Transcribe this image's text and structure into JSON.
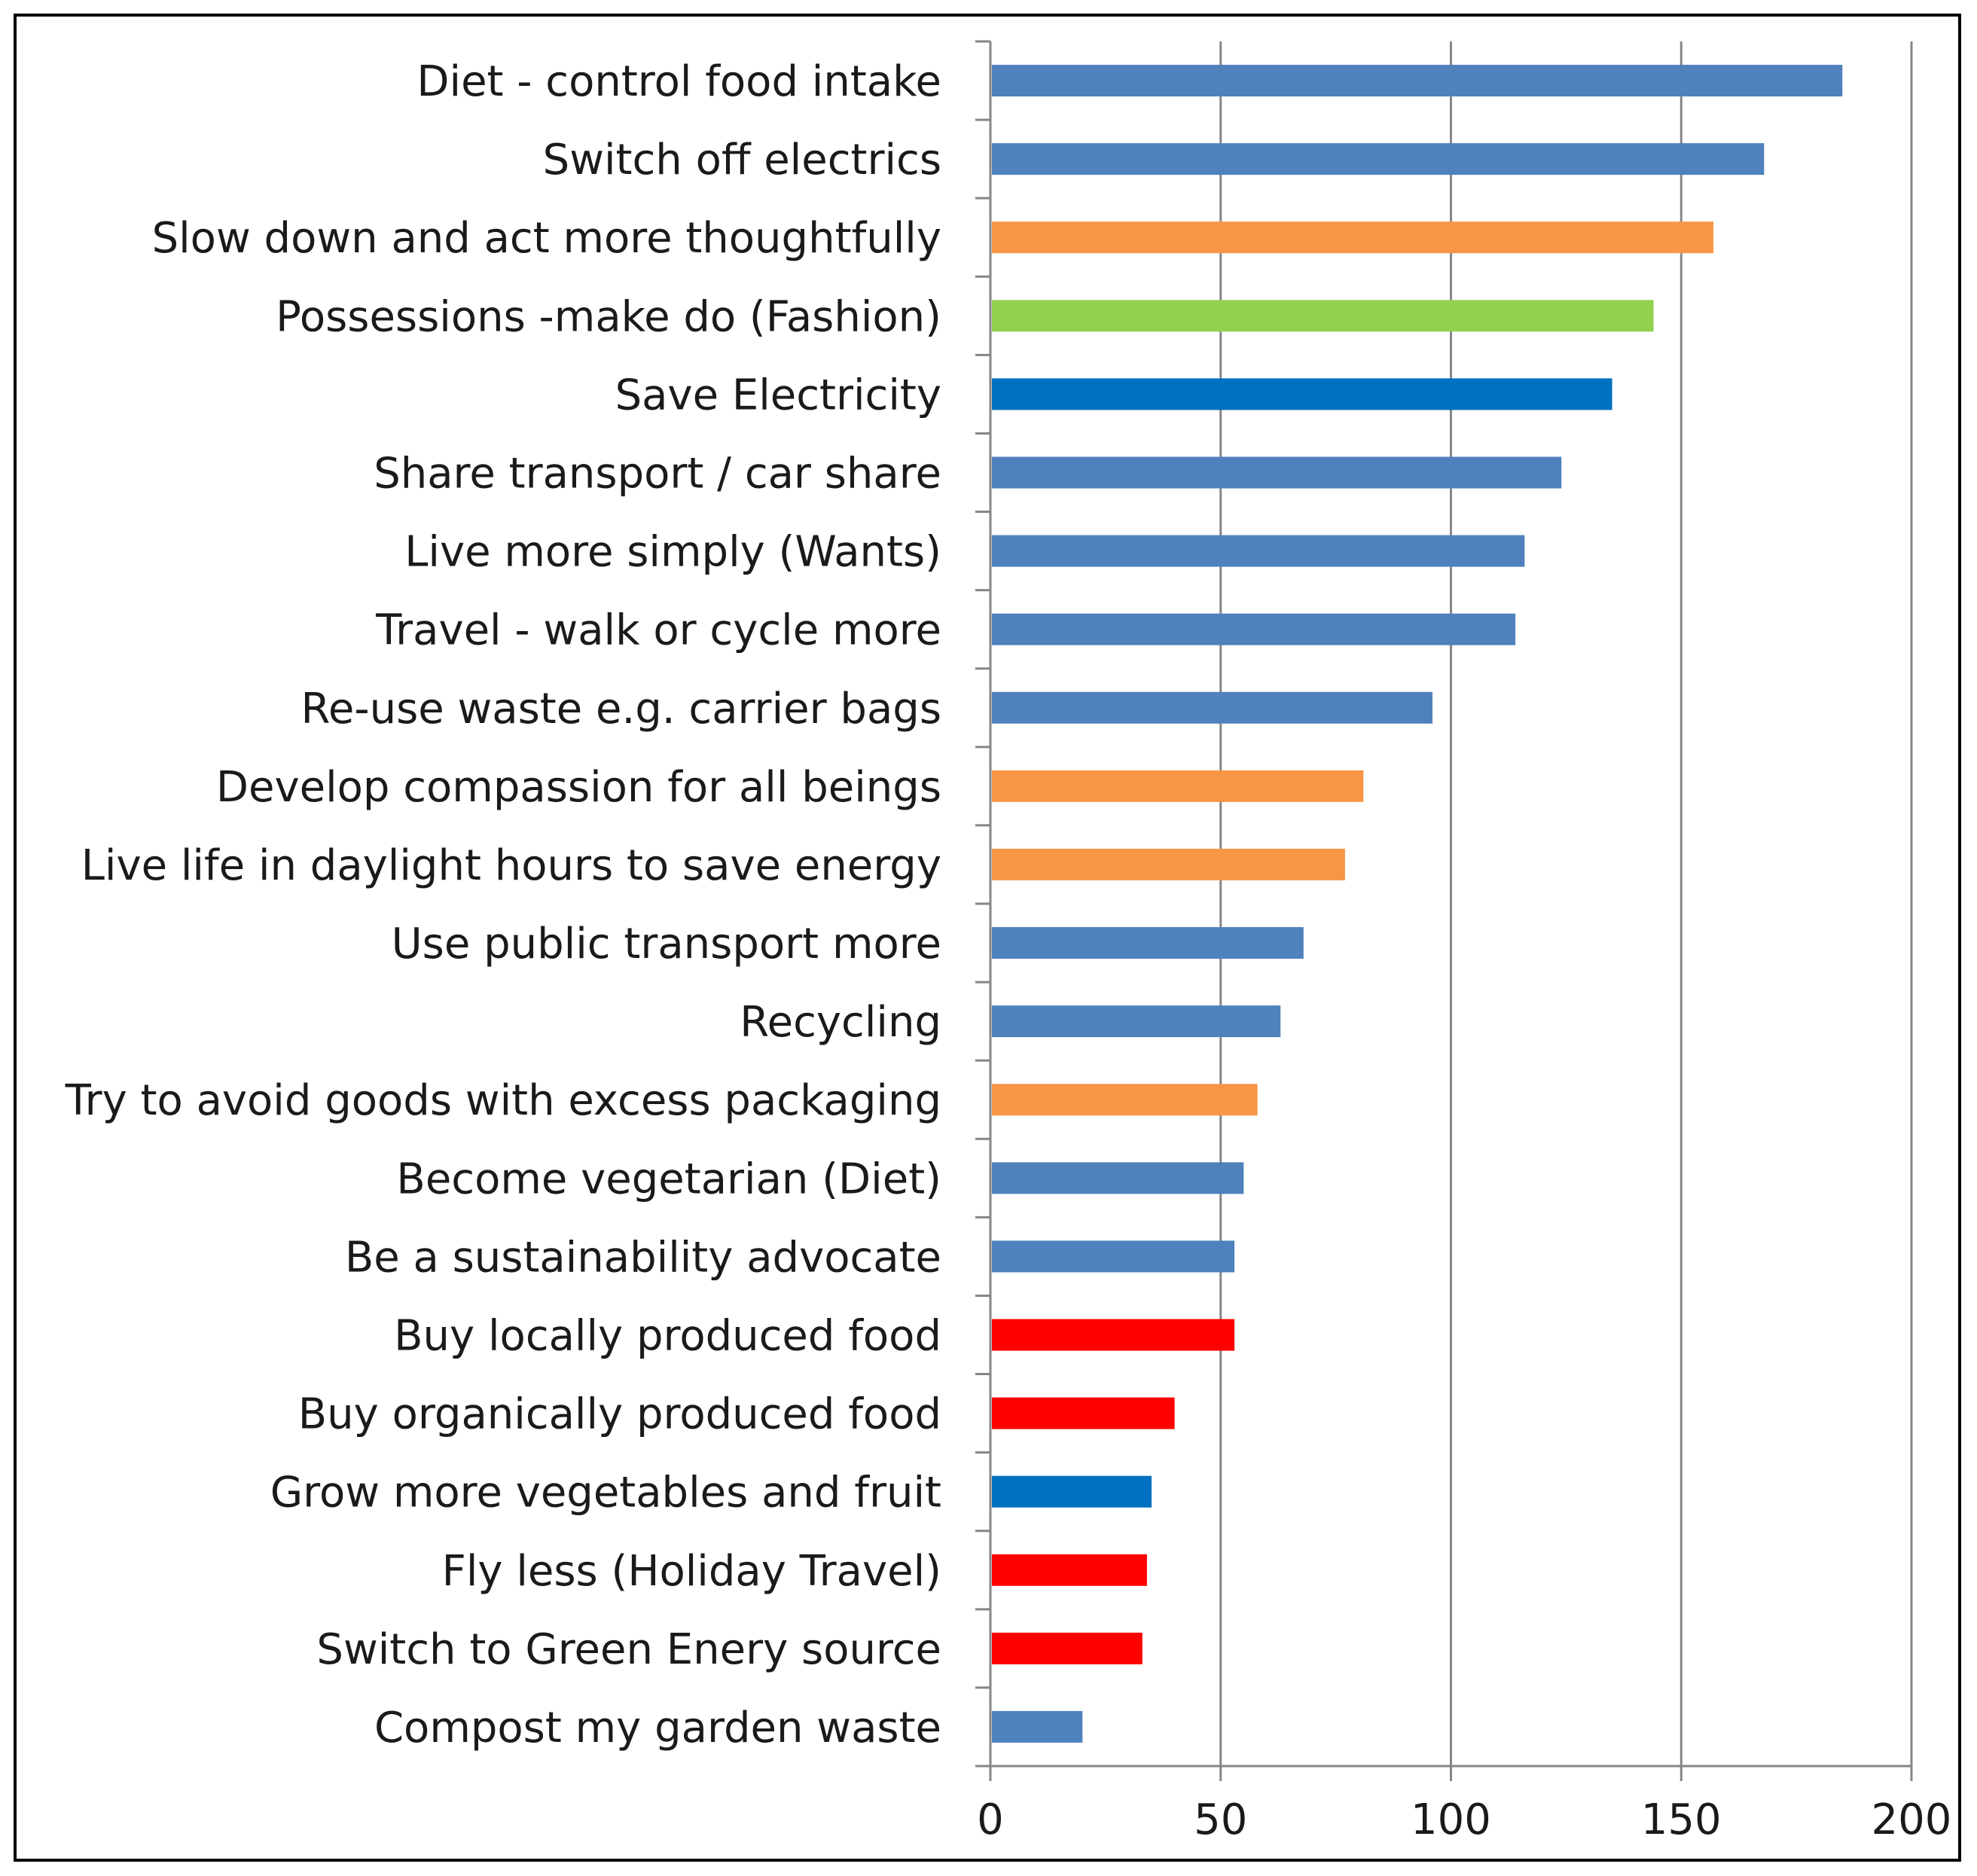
{
  "chart_data": {
    "type": "bar",
    "orientation": "horizontal",
    "title": "",
    "xlabel": "",
    "ylabel": "",
    "xlim": [
      0,
      200
    ],
    "xticks": [
      "0",
      "50",
      "100",
      "150",
      "200"
    ],
    "grid": true,
    "legend": "none",
    "categories": [
      "Diet - control food intake",
      "Switch off electrics",
      "Slow down and act more thoughtfully",
      "Possessions -make do (Fashion)",
      "Save Electricity",
      "Share transport / car share",
      "Live more simply (Wants)",
      "Travel - walk or cycle more",
      "Re-use waste e.g. carrier bags",
      "Develop compassion for all beings",
      "Live life in daylight hours to save energy",
      "Use public transport more",
      "Recycling",
      "Try to avoid goods with excess packaging",
      "Become vegetarian (Diet)",
      "Be a sustainability advocate",
      "Buy locally produced food",
      "Buy organically produced food",
      "Grow more vegetables and fruit",
      "Fly less (Holiday Travel)",
      "Switch to Green Enery source",
      "Compost my garden waste"
    ],
    "values": [
      185,
      168,
      157,
      144,
      135,
      124,
      116,
      114,
      96,
      81,
      77,
      68,
      63,
      58,
      55,
      53,
      53,
      40,
      35,
      34,
      33,
      20
    ],
    "colors": [
      "#4f81bd",
      "#4f81bd",
      "#f79646",
      "#92d050",
      "#0070c0",
      "#4f81bd",
      "#4f81bd",
      "#4f81bd",
      "#4f81bd",
      "#f79646",
      "#f79646",
      "#4f81bd",
      "#4f81bd",
      "#f79646",
      "#4f81bd",
      "#4f81bd",
      "#ff0000",
      "#ff0000",
      "#0070c0",
      "#ff0000",
      "#ff0000",
      "#4f81bd"
    ]
  }
}
